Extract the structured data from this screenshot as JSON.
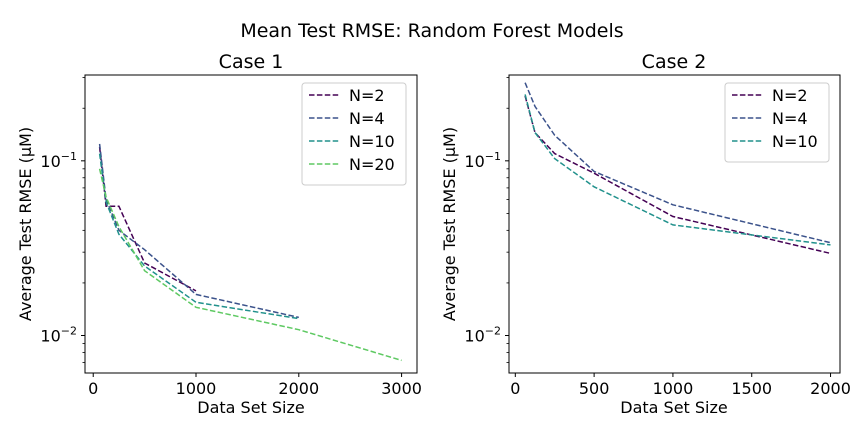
{
  "figure": {
    "suptitle": "Mean Test RMSE: Random Forest Models"
  },
  "chart_data": [
    {
      "type": "line",
      "title": "Case 1",
      "xlabel": "Data Set Size",
      "ylabel": "Average Test RMSE (μM)",
      "yscale": "log",
      "xlim": [
        -80,
        3150
      ],
      "ylim": [
        0.0061,
        0.31
      ],
      "xticks": [
        0,
        1000,
        2000,
        3000
      ],
      "yticks": [
        {
          "value": 0.01,
          "base": "10",
          "exp": "−2"
        },
        {
          "value": 0.1,
          "base": "10",
          "exp": "−1"
        }
      ],
      "grid": false,
      "legend": "top-right",
      "series": [
        {
          "name": "N=2",
          "color": "#440154",
          "x": [
            62,
            125,
            250,
            500,
            1000
          ],
          "y": [
            0.12,
            0.055,
            0.055,
            0.026,
            0.018
          ]
        },
        {
          "name": "N=4",
          "color": "#3b528b",
          "x": [
            62,
            125,
            250,
            500,
            1000,
            2000
          ],
          "y": [
            0.125,
            0.06,
            0.04,
            0.031,
            0.0172,
            0.0127
          ]
        },
        {
          "name": "N=10",
          "color": "#21918c",
          "x": [
            62,
            125,
            250,
            500,
            1000,
            2000
          ],
          "y": [
            0.11,
            0.058,
            0.038,
            0.025,
            0.0155,
            0.0125
          ]
        },
        {
          "name": "N=20",
          "color": "#5ec962",
          "x": [
            62,
            125,
            250,
            500,
            1000,
            2000,
            3000
          ],
          "y": [
            0.09,
            0.062,
            0.042,
            0.0235,
            0.0145,
            0.0108,
            0.0072
          ]
        }
      ]
    },
    {
      "type": "line",
      "title": "Case 2",
      "xlabel": "Data Set Size",
      "ylabel": "Average Test RMSE (μM)",
      "yscale": "log",
      "xlim": [
        -40,
        2060
      ],
      "ylim": [
        0.0061,
        0.31
      ],
      "xticks": [
        0,
        500,
        1000,
        1500,
        2000
      ],
      "yticks": [
        {
          "value": 0.01,
          "base": "10",
          "exp": "−2"
        },
        {
          "value": 0.1,
          "base": "10",
          "exp": "−1"
        }
      ],
      "grid": false,
      "legend": "top-right",
      "series": [
        {
          "name": "N=2",
          "color": "#440154",
          "x": [
            62,
            125,
            250,
            500,
            1000,
            2000
          ],
          "y": [
            0.235,
            0.145,
            0.11,
            0.085,
            0.048,
            0.0295
          ]
        },
        {
          "name": "N=4",
          "color": "#3b528b",
          "x": [
            62,
            125,
            250,
            500,
            1000,
            2000
          ],
          "y": [
            0.28,
            0.205,
            0.14,
            0.087,
            0.056,
            0.034
          ]
        },
        {
          "name": "N=10",
          "color": "#21918c",
          "x": [
            62,
            125,
            250,
            500,
            1000,
            2000
          ],
          "y": [
            0.24,
            0.145,
            0.103,
            0.071,
            0.043,
            0.033
          ]
        }
      ]
    }
  ]
}
